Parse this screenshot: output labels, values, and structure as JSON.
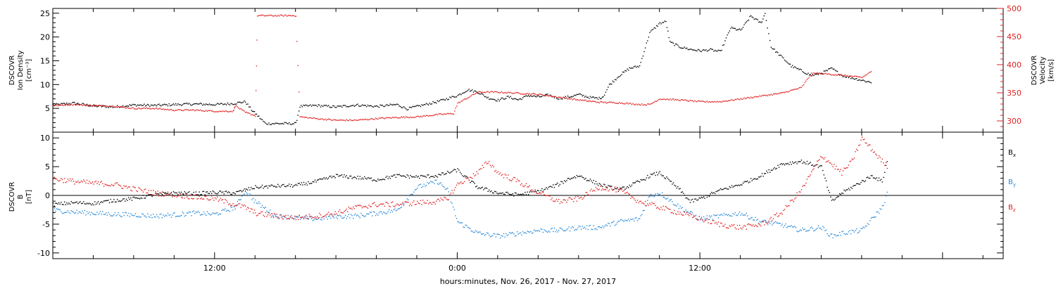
{
  "colors": {
    "black": "#000000",
    "red": "#e02020",
    "blue": "#2a8ad8"
  },
  "chart_data": [
    {
      "type": "scatter",
      "panel": "top",
      "ylabel_left": [
        "DSCOVR",
        "Ion Density",
        "[cm⁻³]"
      ],
      "ylabel_right": [
        "DSCOVR",
        "Velocity",
        "[km/s]"
      ],
      "ylim_left": [
        0,
        26
      ],
      "ylim_right": [
        280,
        500
      ],
      "yticks_left": [
        5,
        10,
        15,
        20,
        25
      ],
      "yticks_right": [
        300,
        350,
        400,
        450,
        500
      ],
      "xlim_hours": [
        4,
        51
      ],
      "grid": false,
      "series": [
        {
          "axis": "left",
          "color": "black",
          "points": [
            [
              4,
              5.8
            ],
            [
              5,
              6.2
            ],
            [
              6,
              5.6
            ],
            [
              7,
              5.4
            ],
            [
              8,
              5.8
            ],
            [
              9,
              5.7
            ],
            [
              10,
              5.9
            ],
            [
              11,
              6
            ],
            [
              12,
              5.9
            ],
            [
              12.9,
              6.1
            ],
            [
              13.5,
              6.5
            ],
            [
              13.8,
              4.8
            ],
            [
              14,
              4
            ],
            [
              14.5,
              1.9
            ],
            [
              15,
              1.9
            ],
            [
              15.5,
              1.9
            ],
            [
              16,
              1.9
            ],
            [
              16.2,
              5.5
            ],
            [
              17,
              5.7
            ],
            [
              18,
              5.4
            ],
            [
              19,
              5.8
            ],
            [
              20,
              5.5
            ],
            [
              21,
              5.9
            ],
            [
              21.5,
              5
            ],
            [
              22,
              5.5
            ],
            [
              23,
              6.5
            ],
            [
              24,
              7.8
            ],
            [
              24.5,
              9
            ],
            [
              25,
              8.5
            ],
            [
              25.5,
              7.3
            ],
            [
              26,
              6.8
            ],
            [
              26.5,
              7.5
            ],
            [
              27,
              6.9
            ],
            [
              27.5,
              7.8
            ],
            [
              28,
              7.5
            ],
            [
              28.5,
              7.9
            ],
            [
              29,
              7.2
            ],
            [
              29.5,
              7.5
            ],
            [
              30,
              8
            ],
            [
              30.5,
              7.4
            ],
            [
              31,
              7.2
            ],
            [
              31.2,
              7.6
            ],
            [
              31.5,
              10
            ],
            [
              32,
              12
            ],
            [
              32.5,
              13.5
            ],
            [
              33,
              14
            ],
            [
              33.5,
              21
            ],
            [
              34,
              23
            ],
            [
              34.3,
              23.3
            ],
            [
              34.5,
              19
            ],
            [
              35,
              18
            ],
            [
              35.5,
              17.5
            ],
            [
              36,
              17.2
            ],
            [
              36.5,
              17.4
            ],
            [
              37,
              17
            ],
            [
              37.5,
              22
            ],
            [
              38,
              21.5
            ],
            [
              38.5,
              24.5
            ],
            [
              39,
              23
            ],
            [
              39.2,
              25
            ],
            [
              39.5,
              18
            ],
            [
              40,
              16
            ],
            [
              40.5,
              14
            ],
            [
              41,
              13
            ],
            [
              41.5,
              12
            ],
            [
              42,
              12.5
            ],
            [
              42.5,
              13.5
            ],
            [
              43,
              12
            ],
            [
              43.5,
              11.5
            ],
            [
              44,
              11
            ],
            [
              44.5,
              10.5
            ]
          ]
        },
        {
          "axis": "right",
          "color": "red",
          "points": [
            [
              4,
              328
            ],
            [
              5,
              330
            ],
            [
              6,
              328
            ],
            [
              7,
              327
            ],
            [
              8,
              323
            ],
            [
              9,
              323
            ],
            [
              10,
              320
            ],
            [
              11,
              320
            ],
            [
              12,
              318
            ],
            [
              12.9,
              318
            ],
            [
              13,
              328
            ],
            [
              13.5,
              316
            ],
            [
              14,
              310
            ],
            [
              14.1,
              488
            ],
            [
              15,
              488
            ],
            [
              16,
              488
            ],
            [
              16.2,
              308
            ],
            [
              17,
              305
            ],
            [
              18,
              302
            ],
            [
              19,
              302
            ],
            [
              20,
              305
            ],
            [
              21,
              307
            ],
            [
              22,
              308
            ],
            [
              23,
              312
            ],
            [
              23.8,
              314
            ],
            [
              24,
              332
            ],
            [
              25,
              352
            ],
            [
              26,
              352
            ],
            [
              27,
              350
            ],
            [
              28,
              348
            ],
            [
              29,
              343
            ],
            [
              30,
              338
            ],
            [
              31,
              334
            ],
            [
              32,
              333
            ],
            [
              33,
              330
            ],
            [
              33.5,
              330
            ],
            [
              34,
              340
            ],
            [
              35,
              338
            ],
            [
              36,
              335
            ],
            [
              37,
              335
            ],
            [
              38,
              340
            ],
            [
              39,
              345
            ],
            [
              40,
              350
            ],
            [
              40.5,
              355
            ],
            [
              41,
              360
            ],
            [
              41.5,
              385
            ],
            [
              42,
              385
            ],
            [
              43,
              382
            ],
            [
              44,
              378
            ],
            [
              44.5,
              390
            ]
          ]
        }
      ]
    },
    {
      "type": "scatter",
      "panel": "bottom",
      "ylabel_left": [
        "DSCOVR",
        "B",
        "[nT]"
      ],
      "ylim": [
        -11,
        11
      ],
      "yticks": [
        -10,
        -5,
        0,
        5,
        10
      ],
      "xlim_hours": [
        4,
        51
      ],
      "xticks": [
        {
          "hour": 12,
          "label": "12:00"
        },
        {
          "hour": 24,
          "label": "0:00"
        },
        {
          "hour": 36,
          "label": "12:00"
        }
      ],
      "xlabel": "hours:minutes, Nov. 26, 2017 - Nov. 27, 2017",
      "grid": false,
      "zero_line": true,
      "legend": [
        {
          "main": "B",
          "sub": "x",
          "color": "black"
        },
        {
          "main": "B",
          "sub": "y",
          "color": "blue"
        },
        {
          "main": "B",
          "sub": "z",
          "color": "red"
        }
      ],
      "series": [
        {
          "name_ref": "Bx",
          "color": "black",
          "points": [
            [
              4,
              -1.5
            ],
            [
              5,
              -1.2
            ],
            [
              6,
              -1.3
            ],
            [
              7,
              -0.8
            ],
            [
              8,
              -0.5
            ],
            [
              9,
              0.2
            ],
            [
              10,
              0.5
            ],
            [
              11,
              0.4
            ],
            [
              12,
              0.6
            ],
            [
              13,
              0.5
            ],
            [
              13.5,
              1
            ],
            [
              14,
              1.5
            ],
            [
              15,
              1.7
            ],
            [
              16,
              1.8
            ],
            [
              17,
              2.5
            ],
            [
              18,
              3.5
            ],
            [
              19,
              3.2
            ],
            [
              20,
              2.8
            ],
            [
              21,
              3.5
            ],
            [
              22,
              3.3
            ],
            [
              23,
              3.5
            ],
            [
              23.5,
              4
            ],
            [
              24,
              4.5
            ],
            [
              24.3,
              3.5
            ],
            [
              25,
              1.5
            ],
            [
              26,
              0.5
            ],
            [
              27,
              0.2
            ],
            [
              28,
              0.8
            ],
            [
              29,
              2
            ],
            [
              29.5,
              3
            ],
            [
              30,
              3.5
            ],
            [
              31,
              2
            ],
            [
              32,
              1
            ],
            [
              33,
              2.5
            ],
            [
              33.5,
              3.5
            ],
            [
              34,
              4
            ],
            [
              35,
              1
            ],
            [
              35.5,
              -1
            ],
            [
              36,
              -0.5
            ],
            [
              37,
              1
            ],
            [
              38,
              2
            ],
            [
              39,
              3.5
            ],
            [
              40,
              5.5
            ],
            [
              41,
              6
            ],
            [
              42,
              5
            ],
            [
              42.5,
              -1
            ],
            [
              43,
              0.5
            ],
            [
              44,
              2.5
            ],
            [
              44.5,
              3.5
            ],
            [
              45,
              2.5
            ],
            [
              45.3,
              7
            ]
          ]
        },
        {
          "name_ref": "By",
          "color": "blue",
          "points": [
            [
              4,
              -2.5
            ],
            [
              5,
              -2.8
            ],
            [
              6,
              -3
            ],
            [
              7,
              -3.2
            ],
            [
              8,
              -3.3
            ],
            [
              9,
              -3.5
            ],
            [
              10,
              -3.3
            ],
            [
              11,
              -3
            ],
            [
              12,
              -3.2
            ],
            [
              13,
              -2
            ],
            [
              13.5,
              1
            ],
            [
              14,
              -1
            ],
            [
              15,
              -3.5
            ],
            [
              16,
              -3.8
            ],
            [
              17,
              -4
            ],
            [
              18,
              -3.6
            ],
            [
              19,
              -3.5
            ],
            [
              20,
              -3
            ],
            [
              21,
              -2.5
            ],
            [
              22,
              1.5
            ],
            [
              23,
              2.5
            ],
            [
              23.5,
              1
            ],
            [
              24,
              -4.5
            ],
            [
              25,
              -6.5
            ],
            [
              26,
              -7
            ],
            [
              27,
              -6.5
            ],
            [
              28,
              -6
            ],
            [
              29,
              -6
            ],
            [
              30,
              -5.5
            ],
            [
              31,
              -5.5
            ],
            [
              32,
              -4.5
            ],
            [
              33,
              -4
            ],
            [
              33.5,
              0
            ],
            [
              34,
              0.5
            ],
            [
              35,
              -2
            ],
            [
              36,
              -4
            ],
            [
              37,
              -3.5
            ],
            [
              38,
              -3
            ],
            [
              39,
              -4.5
            ],
            [
              40,
              -5
            ],
            [
              41,
              -6
            ],
            [
              42,
              -5.5
            ],
            [
              42.5,
              -7
            ],
            [
              43,
              -6.5
            ],
            [
              44,
              -6
            ],
            [
              44.5,
              -4
            ],
            [
              45,
              -2
            ],
            [
              45.3,
              1
            ]
          ]
        },
        {
          "name_ref": "Bz",
          "color": "red",
          "points": [
            [
              4,
              3
            ],
            [
              5,
              2.5
            ],
            [
              6,
              2.2
            ],
            [
              7,
              2
            ],
            [
              8,
              1.2
            ],
            [
              9,
              0.5
            ],
            [
              10,
              0.2
            ],
            [
              11,
              -0.2
            ],
            [
              12,
              -0.5
            ],
            [
              13,
              -1.5
            ],
            [
              13.5,
              -2
            ],
            [
              14,
              -3
            ],
            [
              15,
              -3.5
            ],
            [
              16,
              -3.8
            ],
            [
              17,
              -3.5
            ],
            [
              18,
              -3
            ],
            [
              19,
              -2
            ],
            [
              20,
              -1.5
            ],
            [
              21,
              -1.5
            ],
            [
              22,
              -1.2
            ],
            [
              23,
              -1
            ],
            [
              23.5,
              -0.5
            ],
            [
              24,
              2
            ],
            [
              25,
              4
            ],
            [
              25.5,
              6
            ],
            [
              26,
              4
            ],
            [
              27,
              2.5
            ],
            [
              28,
              0.5
            ],
            [
              29,
              -1
            ],
            [
              30,
              -0.5
            ],
            [
              31,
              1.5
            ],
            [
              32,
              1
            ],
            [
              33,
              -1
            ],
            [
              34,
              -2
            ],
            [
              35,
              -3
            ],
            [
              36,
              -4
            ],
            [
              37,
              -5
            ],
            [
              38,
              -5.5
            ],
            [
              39,
              -5
            ],
            [
              40,
              -3
            ],
            [
              41,
              1
            ],
            [
              42,
              7
            ],
            [
              43,
              4
            ],
            [
              43.5,
              6
            ],
            [
              44,
              10
            ],
            [
              44.5,
              8
            ],
            [
              45,
              6
            ],
            [
              45.3,
              5
            ]
          ]
        }
      ]
    }
  ]
}
